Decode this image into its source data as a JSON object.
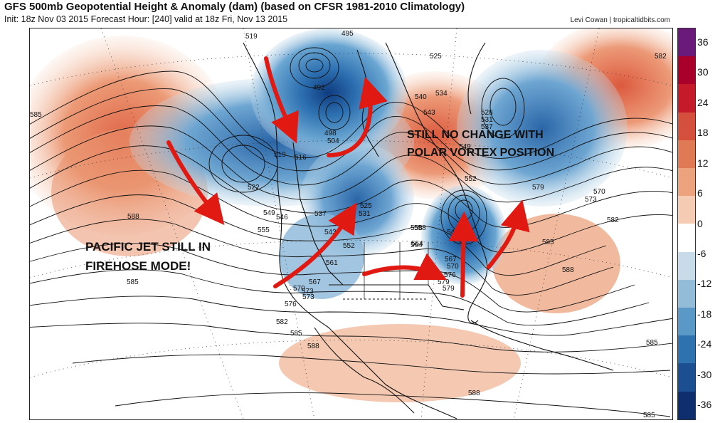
{
  "header": {
    "title": "GFS 500mb Geopotential Height & Anomaly (dam) (based on CFSR 1981-2010 Climatology)",
    "subtitle": "Init: 18z Nov 03 2015   Forecast Hour: [240]   valid at 18z Fri, Nov 13 2015",
    "credit": "Levi Cowan | tropicaltidbits.com"
  },
  "colorbar": {
    "ticks": [
      "36",
      "30",
      "24",
      "18",
      "12",
      "6",
      "0",
      "-6",
      "-12",
      "-18",
      "-24",
      "-30",
      "-36"
    ],
    "colors": [
      "#6a1a7a",
      "#a8002a",
      "#c41a2a",
      "#d4503c",
      "#e07a55",
      "#eda27e",
      "#f5cbb3",
      "#ffffff",
      "#c8dbe8",
      "#93bcd8",
      "#5a98c8",
      "#2f72b0",
      "#1c4f92",
      "#0f2e6e"
    ]
  },
  "annotations": {
    "pacific_jet": [
      "PACIFIC JET STILL IN",
      "FIREHOSE MODE!"
    ],
    "polar_vortex": [
      "STILL NO CHANGE WITH",
      "POLAR VORTEX POSITION"
    ]
  },
  "contour_labels": [
    "519",
    "495",
    "492",
    "498",
    "504",
    "516",
    "519",
    "522",
    "525",
    "528",
    "531",
    "534",
    "537",
    "540",
    "543",
    "549",
    "552",
    "555",
    "558",
    "561",
    "564",
    "567",
    "570",
    "573",
    "576",
    "579",
    "582",
    "585",
    "588",
    "585",
    "582",
    "579",
    "576",
    "573",
    "570",
    "567",
    "549",
    "546",
    "537",
    "543",
    "531",
    "525",
    "552",
    "558",
    "564",
    "546",
    "585",
    "588",
    "582",
    "585",
    "588",
    "585",
    "588",
    "585",
    "579",
    "570",
    "573"
  ],
  "colors": {
    "ridge": "#e8825e",
    "trough": "#3d85c0",
    "arrow": "#e01a12"
  }
}
